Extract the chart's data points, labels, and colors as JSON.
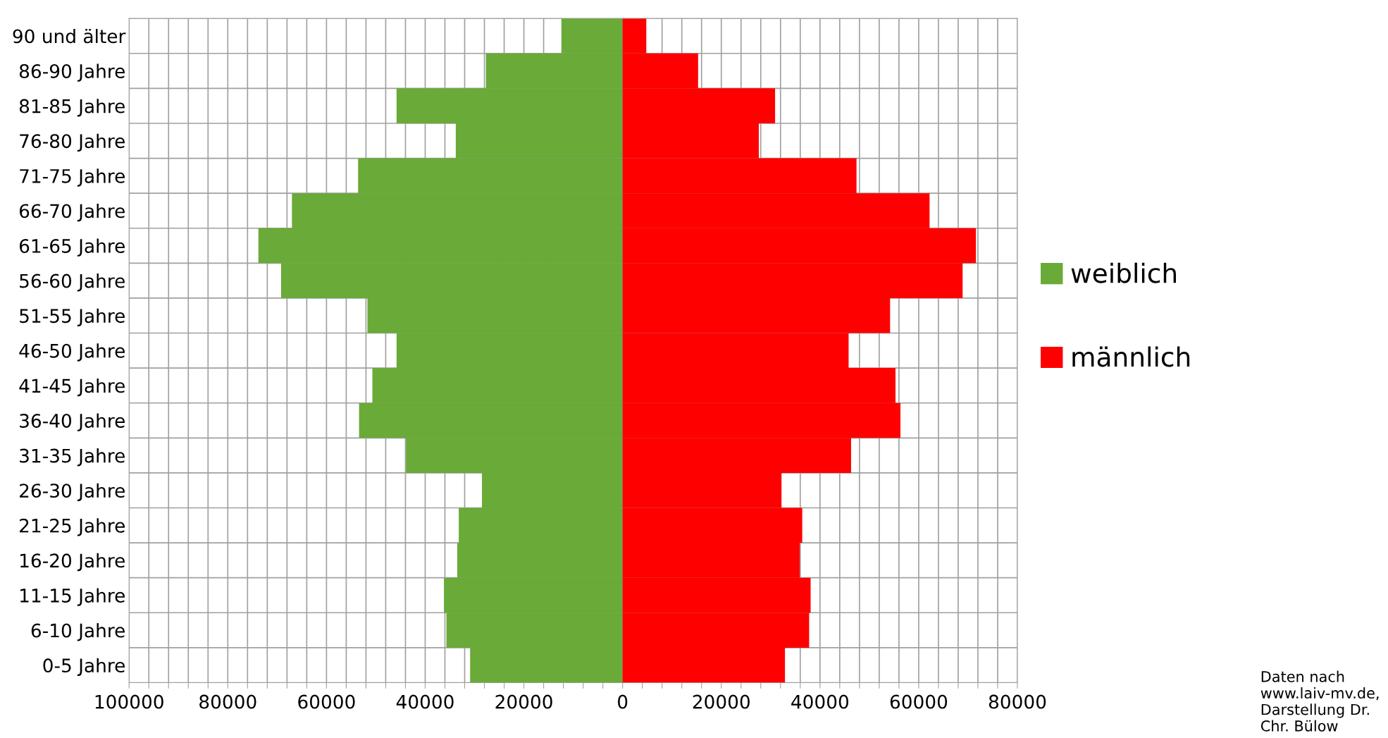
{
  "chart_data": {
    "type": "bar",
    "orientation": "horizontal",
    "categories": [
      "90 und älter",
      "86-90 Jahre",
      "81-85 Jahre",
      "76-80 Jahre",
      "71-75 Jahre",
      "66-70 Jahre",
      "61-65 Jahre",
      "56-60 Jahre",
      "51-55 Jahre",
      "46-50 Jahre",
      "41-45 Jahre",
      "36-40 Jahre",
      "31-35 Jahre",
      "26-30 Jahre",
      "21-25 Jahre",
      "16-20 Jahre",
      "11-15 Jahre",
      "6-10 Jahre",
      "0-5 Jahre"
    ],
    "series": [
      {
        "name": "weiblich",
        "color": "#6aaa38",
        "values": [
          -12400,
          -27700,
          -45800,
          -33800,
          -53600,
          -67000,
          -73800,
          -69200,
          -51700,
          -45800,
          -50700,
          -53400,
          -43900,
          -28500,
          -33200,
          -33500,
          -36200,
          -35700,
          -30900
        ]
      },
      {
        "name": "männlich",
        "color": "#ff0000",
        "values": [
          4800,
          15300,
          30900,
          27600,
          47400,
          62200,
          71600,
          68900,
          54200,
          45800,
          55300,
          56300,
          46300,
          32200,
          36400,
          35900,
          38100,
          37800,
          32900
        ]
      }
    ],
    "xlim": [
      -100000,
      80000
    ],
    "xticks": [
      {
        "value": -100000,
        "label": "100000"
      },
      {
        "value": -96000,
        "label": null
      },
      {
        "value": -92000,
        "label": null
      },
      {
        "value": -88000,
        "label": null
      },
      {
        "value": -84000,
        "label": null
      },
      {
        "value": -80000,
        "label": "80000"
      },
      {
        "value": -76000,
        "label": null
      },
      {
        "value": -72000,
        "label": null
      },
      {
        "value": -68000,
        "label": null
      },
      {
        "value": -64000,
        "label": null
      },
      {
        "value": -60000,
        "label": "60000"
      },
      {
        "value": -56000,
        "label": null
      },
      {
        "value": -52000,
        "label": null
      },
      {
        "value": -48000,
        "label": null
      },
      {
        "value": -44000,
        "label": null
      },
      {
        "value": -40000,
        "label": "40000"
      },
      {
        "value": -36000,
        "label": null
      },
      {
        "value": -32000,
        "label": null
      },
      {
        "value": -28000,
        "label": null
      },
      {
        "value": -24000,
        "label": null
      },
      {
        "value": -20000,
        "label": "20000"
      },
      {
        "value": -16000,
        "label": null
      },
      {
        "value": -12000,
        "label": null
      },
      {
        "value": -8000,
        "label": null
      },
      {
        "value": -4000,
        "label": null
      },
      0,
      {
        "value": 4000,
        "label": null
      },
      {
        "value": 8000,
        "label": null
      },
      {
        "value": 12000,
        "label": null
      },
      {
        "value": 16000,
        "label": null
      },
      20000,
      {
        "value": 24000,
        "label": null
      },
      {
        "value": 28000,
        "label": null
      },
      {
        "value": 32000,
        "label": null
      },
      {
        "value": 36000,
        "label": null
      },
      40000,
      {
        "value": 44000,
        "label": null
      },
      {
        "value": 48000,
        "label": null
      },
      {
        "value": 52000,
        "label": null
      },
      {
        "value": 56000,
        "label": null
      },
      60000,
      {
        "value": 64000,
        "label": null
      },
      {
        "value": 68000,
        "label": null
      },
      {
        "value": 72000,
        "label": null
      },
      {
        "value": 76000,
        "label": null
      },
      80000
    ],
    "grid": true,
    "legend": "right",
    "stacked": true,
    "annotations": [
      "Daten nach www.laiv-mv.de, Darstellung Dr. Chr. Bülow"
    ]
  }
}
